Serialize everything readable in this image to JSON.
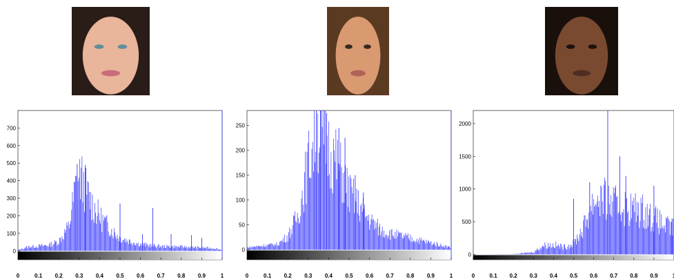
{
  "faces": [
    {
      "name": "face-photo-fair-skin",
      "skin": "#e9b59b",
      "hair": "#2a1c16",
      "lip": "#c96b78",
      "eye": "#5f8f9a"
    },
    {
      "name": "face-photo-medium-skin",
      "skin": "#d99a72",
      "hair": "#5b3a22",
      "lip": "#b06258",
      "eye": "#3a2a1f"
    },
    {
      "name": "face-photo-dark-skin",
      "skin": "#7a4a30",
      "hair": "#1a100b",
      "lip": "#4f2d22",
      "eye": "#1c1210"
    }
  ],
  "chart_data": [
    {
      "type": "bar",
      "title": "",
      "xlabel": "",
      "ylabel": "",
      "xlim": [
        0,
        1
      ],
      "ylim": [
        -50,
        800
      ],
      "yticks": [
        0,
        100,
        200,
        300,
        400,
        500,
        600,
        700
      ],
      "xticks": [
        "0",
        "0.1",
        "0.2",
        "0.3",
        "0.4",
        "0.5",
        "0.6",
        "0.7",
        "0.8",
        "0.9",
        "1"
      ],
      "bar_color": "#3333ff",
      "colorbar": "grayscale",
      "profile": [
        [
          0.0,
          5
        ],
        [
          0.05,
          25
        ],
        [
          0.15,
          35
        ],
        [
          0.2,
          60
        ],
        [
          0.25,
          150
        ],
        [
          0.28,
          380
        ],
        [
          0.3,
          460
        ],
        [
          0.32,
          420
        ],
        [
          0.35,
          320
        ],
        [
          0.4,
          210
        ],
        [
          0.45,
          140
        ],
        [
          0.5,
          80
        ],
        [
          0.6,
          40
        ],
        [
          0.7,
          28
        ],
        [
          0.8,
          25
        ],
        [
          0.9,
          20
        ],
        [
          0.97,
          15
        ],
        [
          1.0,
          5
        ]
      ],
      "spikes": [
        [
          0.29,
          495
        ],
        [
          0.33,
          490
        ],
        [
          0.5,
          270
        ],
        [
          0.66,
          245
        ],
        [
          0.61,
          95
        ],
        [
          0.75,
          95
        ],
        [
          0.85,
          90
        ],
        [
          0.9,
          75
        ]
      ]
    },
    {
      "type": "bar",
      "title": "",
      "xlabel": "",
      "ylabel": "",
      "xlim": [
        0,
        1
      ],
      "ylim": [
        -20,
        280
      ],
      "yticks": [
        0,
        50,
        100,
        150,
        200,
        250
      ],
      "xticks": [
        "0",
        "0.1",
        "0.2",
        "0.3",
        "0.4",
        "0.5",
        "0.6",
        "0.7",
        "0.8",
        "0.9",
        "1"
      ],
      "bar_color": "#3333ff",
      "colorbar": "grayscale",
      "profile": [
        [
          0.0,
          5
        ],
        [
          0.1,
          10
        ],
        [
          0.15,
          12
        ],
        [
          0.2,
          30
        ],
        [
          0.25,
          75
        ],
        [
          0.28,
          140
        ],
        [
          0.3,
          190
        ],
        [
          0.33,
          245
        ],
        [
          0.35,
          265
        ],
        [
          0.38,
          240
        ],
        [
          0.42,
          205
        ],
        [
          0.46,
          170
        ],
        [
          0.5,
          125
        ],
        [
          0.55,
          95
        ],
        [
          0.6,
          65
        ],
        [
          0.65,
          45
        ],
        [
          0.7,
          35
        ],
        [
          0.8,
          25
        ],
        [
          0.9,
          15
        ],
        [
          1.0,
          5
        ]
      ],
      "spikes": [
        [
          0.34,
          280
        ],
        [
          0.36,
          280
        ],
        [
          0.39,
          275
        ],
        [
          0.45,
          245
        ],
        [
          0.48,
          225
        ],
        [
          0.53,
          150
        ],
        [
          0.57,
          115
        ]
      ]
    },
    {
      "type": "bar",
      "title": "",
      "xlabel": "",
      "ylabel": "",
      "xlim": [
        0,
        1
      ],
      "ylim": [
        -80,
        2200
      ],
      "yticks": [
        0,
        500,
        1000,
        1500,
        2000
      ],
      "xticks": [
        "0",
        "0.1",
        "0.2",
        "0.3",
        "0.4",
        "0.5",
        "0.6",
        "0.7",
        "0.8",
        "0.9",
        "1"
      ],
      "bar_color": "#3333ff",
      "colorbar": "grayscale",
      "profile": [
        [
          0.0,
          0
        ],
        [
          0.2,
          5
        ],
        [
          0.3,
          40
        ],
        [
          0.35,
          150
        ],
        [
          0.4,
          160
        ],
        [
          0.45,
          120
        ],
        [
          0.5,
          180
        ],
        [
          0.55,
          450
        ],
        [
          0.6,
          900
        ],
        [
          0.63,
          950
        ],
        [
          0.7,
          820
        ],
        [
          0.8,
          750
        ],
        [
          0.85,
          720
        ],
        [
          0.9,
          600
        ],
        [
          0.95,
          480
        ],
        [
          1.0,
          420
        ]
      ],
      "spikes": [
        [
          0.5,
          850
        ],
        [
          0.58,
          1100
        ],
        [
          0.67,
          2200
        ],
        [
          0.73,
          1500
        ],
        [
          0.76,
          1200
        ],
        [
          0.9,
          1050
        ],
        [
          0.99,
          550
        ]
      ]
    }
  ]
}
